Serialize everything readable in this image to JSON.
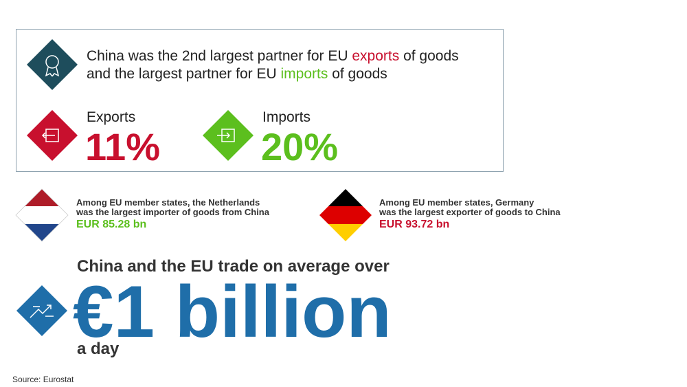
{
  "headline": {
    "line1": {
      "before": "China was the 2nd largest partner for EU ",
      "highlight": "exports",
      "after": " of goods"
    },
    "line2": {
      "before": "and the largest partner for EU ",
      "highlight": "imports",
      "after": " of goods"
    }
  },
  "stats": [
    {
      "label": "Exports",
      "value": "11%"
    },
    {
      "label": "Imports",
      "value": "20%"
    }
  ],
  "members": [
    {
      "line1": "Among EU member states, the Netherlands",
      "line2": "was the largest importer of goods from China",
      "value": "EUR 85.28 bn"
    },
    {
      "line1": "Among EU member states, Germany",
      "line2": "was the largest exporter of goods to China",
      "value": "EUR 93.72 bn"
    }
  ],
  "trade": {
    "intro": "China and the EU trade on average over",
    "amount": "€1 billion",
    "suffix": "a day"
  },
  "source": "Source: Eurostat"
}
